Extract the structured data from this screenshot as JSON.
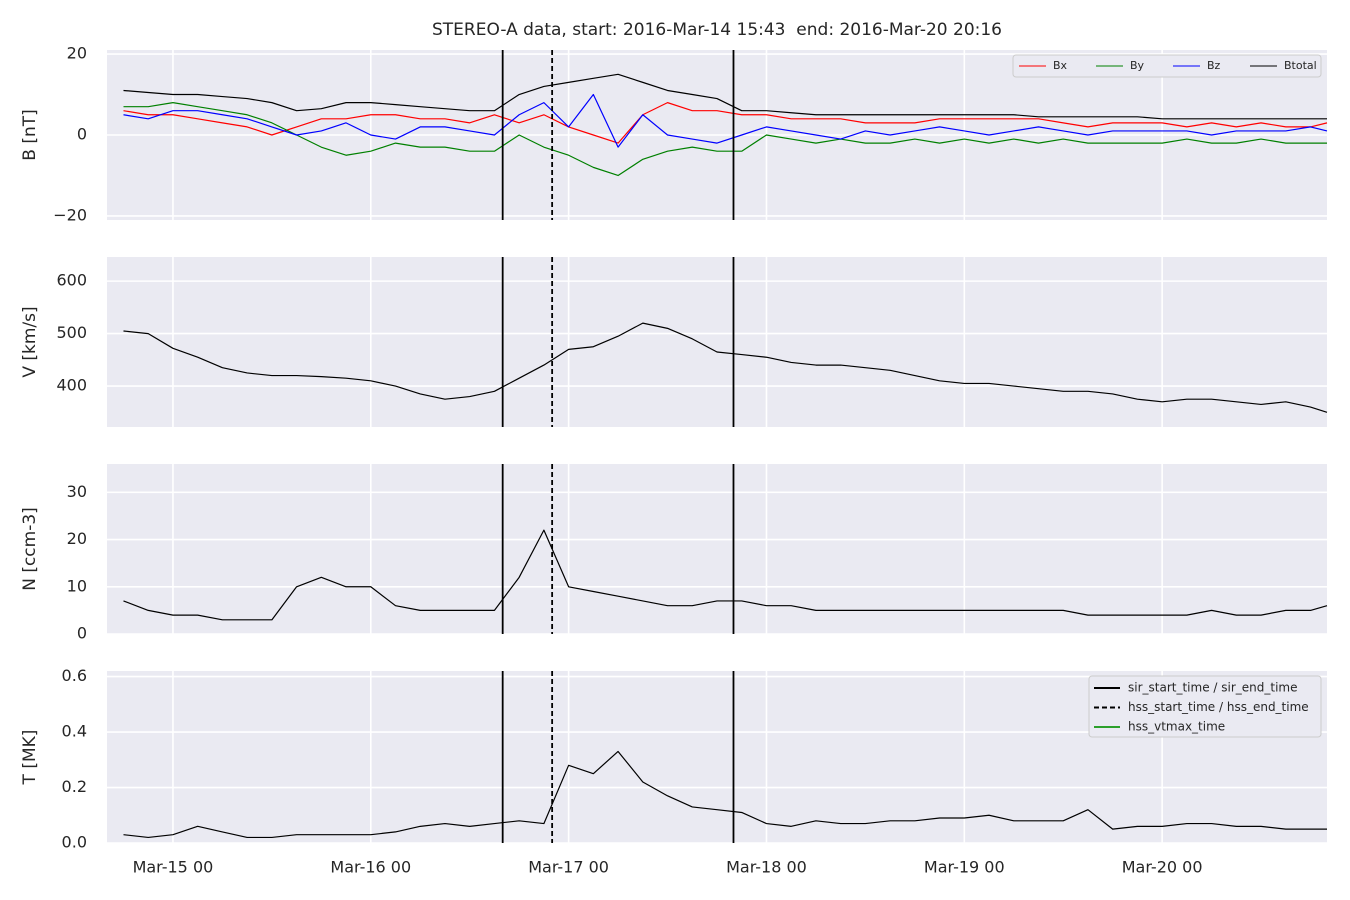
{
  "title": "STEREO-A data, start: 2016-Mar-14 15:43  end: 2016-Mar-20 20:16",
  "chart_data": [
    {
      "type": "line",
      "ylabel": "B [nT]",
      "ylim": [
        -21,
        21
      ],
      "yticks": [
        {
          "value": -20,
          "label": "−20"
        },
        0,
        20
      ],
      "xlim": [
        "Mar-14 16",
        "Mar-20 20"
      ],
      "xticks": [
        "Mar-15 00",
        "Mar-16 00",
        "Mar-17 00",
        "Mar-18 00",
        "Mar-19 00",
        "Mar-20 00"
      ],
      "grid": true,
      "legend": "upper right",
      "x": [
        "Mar-14 18",
        "Mar-14 21",
        "Mar-15 00",
        "Mar-15 03",
        "Mar-15 06",
        "Mar-15 09",
        "Mar-15 12",
        "Mar-15 15",
        "Mar-15 18",
        "Mar-15 21",
        "Mar-16 00",
        "Mar-16 03",
        "Mar-16 06",
        "Mar-16 09",
        "Mar-16 12",
        "Mar-16 15",
        "Mar-16 18",
        "Mar-16 21",
        "Mar-17 00",
        "Mar-17 03",
        "Mar-17 06",
        "Mar-17 09",
        "Mar-17 12",
        "Mar-17 15",
        "Mar-17 18",
        "Mar-17 21",
        "Mar-18 00",
        "Mar-18 03",
        "Mar-18 06",
        "Mar-18 09",
        "Mar-18 12",
        "Mar-18 15",
        "Mar-18 18",
        "Mar-18 21",
        "Mar-19 00",
        "Mar-19 03",
        "Mar-19 06",
        "Mar-19 09",
        "Mar-19 12",
        "Mar-19 15",
        "Mar-19 18",
        "Mar-19 21",
        "Mar-20 00",
        "Mar-20 03",
        "Mar-20 06",
        "Mar-20 09",
        "Mar-20 12",
        "Mar-20 15",
        "Mar-20 18",
        "Mar-20 20"
      ],
      "series": [
        {
          "name": "Bx",
          "color": "#ff0000",
          "values": [
            6,
            5,
            5,
            4,
            3,
            2,
            0,
            2,
            4,
            4,
            5,
            5,
            4,
            4,
            3,
            5,
            3,
            5,
            2,
            0,
            -2,
            5,
            8,
            6,
            6,
            5,
            5,
            4,
            4,
            4,
            3,
            3,
            3,
            4,
            4,
            4,
            4,
            4,
            3,
            2,
            3,
            3,
            3,
            2,
            3,
            2,
            3,
            2,
            2,
            3
          ]
        },
        {
          "name": "By",
          "color": "#008000",
          "values": [
            7,
            7,
            8,
            7,
            6,
            5,
            3,
            0,
            -3,
            -5,
            -4,
            -2,
            -3,
            -3,
            -4,
            -4,
            0,
            -3,
            -5,
            -8,
            -10,
            -6,
            -4,
            -3,
            -4,
            -4,
            0,
            -1,
            -2,
            -1,
            -2,
            -2,
            -1,
            -2,
            -1,
            -2,
            -1,
            -2,
            -1,
            -2,
            -2,
            -2,
            -2,
            -1,
            -2,
            -2,
            -1,
            -2,
            -2,
            -2
          ]
        },
        {
          "name": "Bz",
          "color": "#0000ff",
          "values": [
            5,
            4,
            6,
            6,
            5,
            4,
            2,
            0,
            1,
            3,
            0,
            -1,
            2,
            2,
            1,
            0,
            5,
            8,
            2,
            10,
            -3,
            5,
            0,
            -1,
            -2,
            0,
            2,
            1,
            0,
            -1,
            1,
            0,
            1,
            2,
            1,
            0,
            1,
            2,
            1,
            0,
            1,
            1,
            1,
            1,
            0,
            1,
            1,
            1,
            2,
            1
          ]
        },
        {
          "name": "Btotal",
          "color": "#000000",
          "values": [
            11,
            10.5,
            10,
            10,
            9.5,
            9,
            8,
            6,
            6.5,
            8,
            8,
            7.5,
            7,
            6.5,
            6,
            6,
            10,
            12,
            13,
            14,
            15,
            13,
            11,
            10,
            9,
            6,
            6,
            5.5,
            5,
            5,
            5,
            5,
            5,
            5,
            5,
            5,
            5,
            4.5,
            4.5,
            4.5,
            4.5,
            4.5,
            4,
            4,
            4,
            4,
            4,
            4,
            4,
            4
          ]
        }
      ]
    },
    {
      "type": "line",
      "ylabel": "V [km/s]",
      "ylim": [
        322,
        646
      ],
      "yticks": [
        400,
        500,
        600
      ],
      "xlim": [
        "Mar-14 16",
        "Mar-20 20"
      ],
      "xticks": [
        "Mar-15 00",
        "Mar-16 00",
        "Mar-17 00",
        "Mar-18 00",
        "Mar-19 00",
        "Mar-20 00"
      ],
      "grid": true,
      "x": [
        "Mar-14 18",
        "Mar-14 21",
        "Mar-15 00",
        "Mar-15 03",
        "Mar-15 06",
        "Mar-15 09",
        "Mar-15 12",
        "Mar-15 15",
        "Mar-15 18",
        "Mar-15 21",
        "Mar-16 00",
        "Mar-16 03",
        "Mar-16 06",
        "Mar-16 09",
        "Mar-16 12",
        "Mar-16 15",
        "Mar-16 18",
        "Mar-16 21",
        "Mar-17 00",
        "Mar-17 03",
        "Mar-17 06",
        "Mar-17 09",
        "Mar-17 12",
        "Mar-17 15",
        "Mar-17 18",
        "Mar-17 21",
        "Mar-18 00",
        "Mar-18 03",
        "Mar-18 06",
        "Mar-18 09",
        "Mar-18 12",
        "Mar-18 15",
        "Mar-18 18",
        "Mar-18 21",
        "Mar-19 00",
        "Mar-19 03",
        "Mar-19 06",
        "Mar-19 09",
        "Mar-19 12",
        "Mar-19 15",
        "Mar-19 18",
        "Mar-19 21",
        "Mar-20 00",
        "Mar-20 03",
        "Mar-20 06",
        "Mar-20 09",
        "Mar-20 12",
        "Mar-20 15",
        "Mar-20 18",
        "Mar-20 20"
      ],
      "series": [
        {
          "color": "#000000",
          "values": [
            505,
            500,
            472,
            455,
            435,
            425,
            420,
            420,
            418,
            415,
            410,
            400,
            385,
            375,
            380,
            390,
            415,
            440,
            470,
            475,
            495,
            520,
            510,
            490,
            465,
            460,
            455,
            445,
            440,
            440,
            435,
            430,
            420,
            410,
            405,
            405,
            400,
            395,
            390,
            390,
            385,
            375,
            370,
            375,
            375,
            370,
            365,
            370,
            360,
            350
          ]
        }
      ]
    },
    {
      "type": "line",
      "ylabel": "N [ccm-3]",
      "ylim": [
        0,
        36
      ],
      "yticks": [
        0,
        10,
        20,
        30
      ],
      "xlim": [
        "Mar-14 16",
        "Mar-20 20"
      ],
      "xticks": [
        "Mar-15 00",
        "Mar-16 00",
        "Mar-17 00",
        "Mar-18 00",
        "Mar-19 00",
        "Mar-20 00"
      ],
      "grid": true,
      "x": [
        "Mar-14 18",
        "Mar-14 21",
        "Mar-15 00",
        "Mar-15 03",
        "Mar-15 06",
        "Mar-15 09",
        "Mar-15 12",
        "Mar-15 15",
        "Mar-15 18",
        "Mar-15 21",
        "Mar-16 00",
        "Mar-16 03",
        "Mar-16 06",
        "Mar-16 09",
        "Mar-16 12",
        "Mar-16 15",
        "Mar-16 18",
        "Mar-16 21",
        "Mar-17 00",
        "Mar-17 03",
        "Mar-17 06",
        "Mar-17 09",
        "Mar-17 12",
        "Mar-17 15",
        "Mar-17 18",
        "Mar-17 21",
        "Mar-18 00",
        "Mar-18 03",
        "Mar-18 06",
        "Mar-18 09",
        "Mar-18 12",
        "Mar-18 15",
        "Mar-18 18",
        "Mar-18 21",
        "Mar-19 00",
        "Mar-19 03",
        "Mar-19 06",
        "Mar-19 09",
        "Mar-19 12",
        "Mar-19 15",
        "Mar-19 18",
        "Mar-19 21",
        "Mar-20 00",
        "Mar-20 03",
        "Mar-20 06",
        "Mar-20 09",
        "Mar-20 12",
        "Mar-20 15",
        "Mar-20 18",
        "Mar-20 20"
      ],
      "series": [
        {
          "color": "#000000",
          "values": [
            7,
            5,
            4,
            4,
            3,
            3,
            3,
            10,
            12,
            10,
            10,
            6,
            5,
            5,
            5,
            5,
            12,
            22,
            10,
            9,
            8,
            7,
            6,
            6,
            7,
            7,
            6,
            6,
            5,
            5,
            5,
            5,
            5,
            5,
            5,
            5,
            5,
            5,
            5,
            4,
            4,
            4,
            4,
            4,
            5,
            4,
            4,
            5,
            5,
            6
          ]
        }
      ]
    },
    {
      "type": "line",
      "ylabel": "T [MK]",
      "ylim": [
        0,
        0.62
      ],
      "yticks": [
        {
          "value": 0,
          "label": "0.0"
        },
        0.2,
        0.4,
        0.6
      ],
      "xlim": [
        "Mar-14 16",
        "Mar-20 20"
      ],
      "xticks": [
        "Mar-15 00",
        "Mar-16 00",
        "Mar-17 00",
        "Mar-18 00",
        "Mar-19 00",
        "Mar-20 00"
      ],
      "grid": true,
      "legend": "upper right",
      "x": [
        "Mar-14 18",
        "Mar-14 21",
        "Mar-15 00",
        "Mar-15 03",
        "Mar-15 06",
        "Mar-15 09",
        "Mar-15 12",
        "Mar-15 15",
        "Mar-15 18",
        "Mar-15 21",
        "Mar-16 00",
        "Mar-16 03",
        "Mar-16 06",
        "Mar-16 09",
        "Mar-16 12",
        "Mar-16 15",
        "Mar-16 18",
        "Mar-16 21",
        "Mar-17 00",
        "Mar-17 03",
        "Mar-17 06",
        "Mar-17 09",
        "Mar-17 12",
        "Mar-17 15",
        "Mar-17 18",
        "Mar-17 21",
        "Mar-18 00",
        "Mar-18 03",
        "Mar-18 06",
        "Mar-18 09",
        "Mar-18 12",
        "Mar-18 15",
        "Mar-18 18",
        "Mar-18 21",
        "Mar-19 00",
        "Mar-19 03",
        "Mar-19 06",
        "Mar-19 09",
        "Mar-19 12",
        "Mar-19 15",
        "Mar-19 18",
        "Mar-19 21",
        "Mar-20 00",
        "Mar-20 03",
        "Mar-20 06",
        "Mar-20 09",
        "Mar-20 12",
        "Mar-20 15",
        "Mar-20 18",
        "Mar-20 20"
      ],
      "series": [
        {
          "color": "#000000",
          "values": [
            0.03,
            0.02,
            0.03,
            0.06,
            0.04,
            0.02,
            0.02,
            0.03,
            0.03,
            0.03,
            0.03,
            0.04,
            0.06,
            0.07,
            0.06,
            0.07,
            0.08,
            0.07,
            0.28,
            0.25,
            0.33,
            0.22,
            0.17,
            0.13,
            0.12,
            0.11,
            0.07,
            0.06,
            0.08,
            0.07,
            0.07,
            0.08,
            0.08,
            0.09,
            0.09,
            0.1,
            0.08,
            0.08,
            0.08,
            0.12,
            0.05,
            0.06,
            0.06,
            0.07,
            0.07,
            0.06,
            0.06,
            0.05,
            0.05,
            0.05
          ]
        }
      ],
      "events": [
        {
          "name": "sir_start_time / sir_end_time",
          "color": "#000000",
          "dashed": false,
          "x": [
            "Mar-16 16",
            "Mar-17 20"
          ]
        },
        {
          "name": "hss_start_time / hss_end_time",
          "color": "#000000",
          "dashed": true,
          "x": [
            "Mar-16 22"
          ]
        },
        {
          "name": "hss_vtmax_time",
          "color": "#2ca02c",
          "dashed": false,
          "x": []
        }
      ]
    }
  ]
}
